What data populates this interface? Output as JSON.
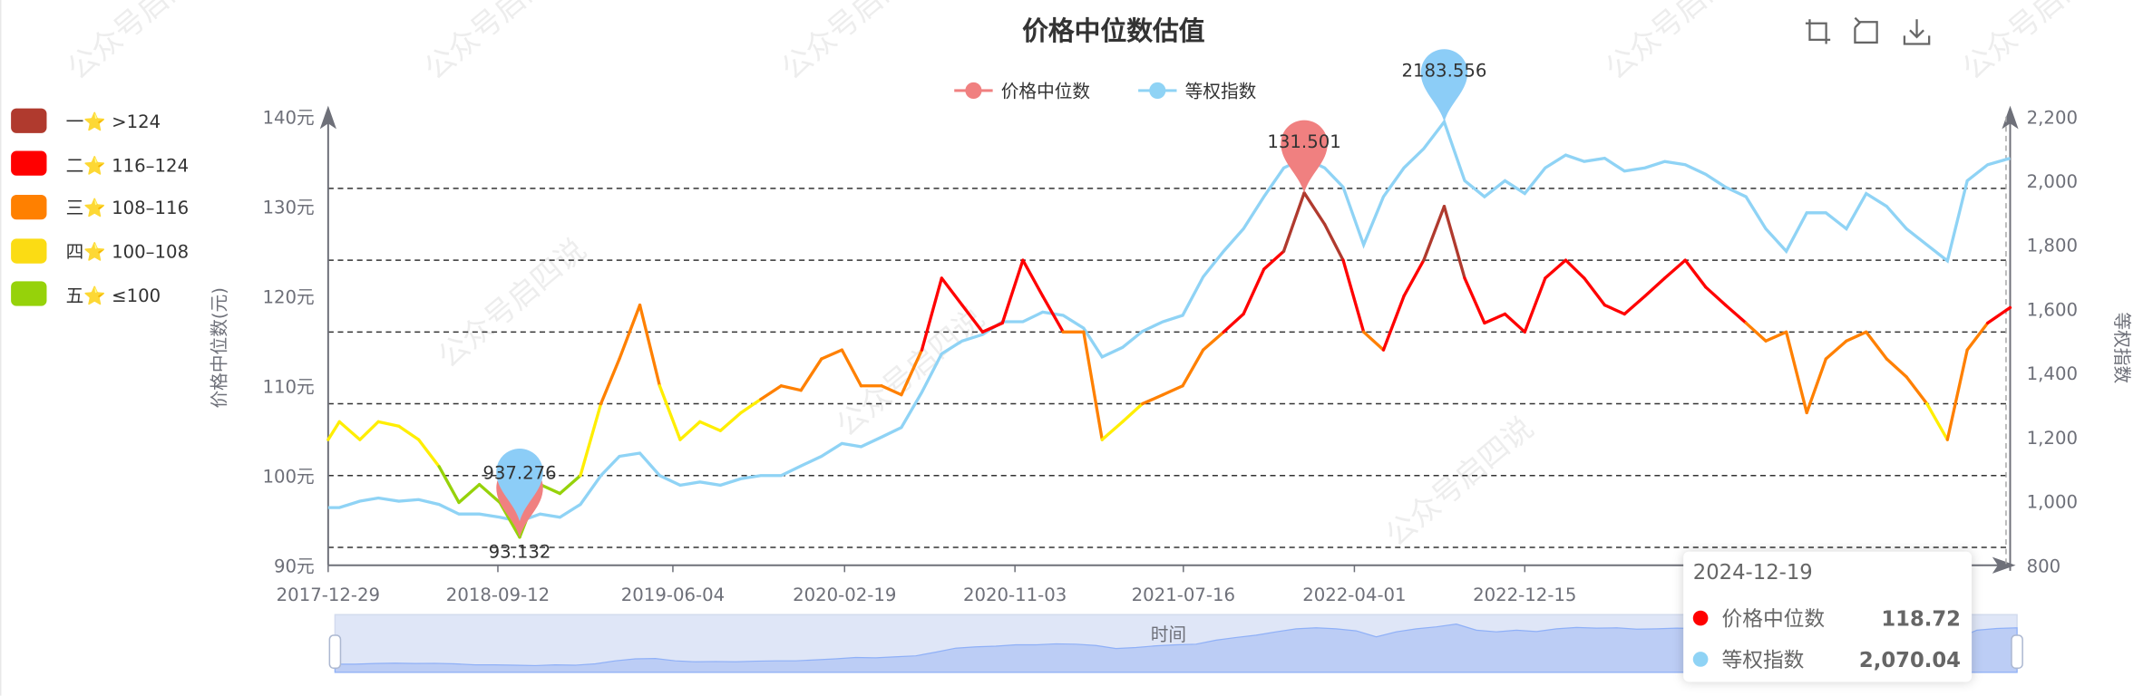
{
  "chart_data": {
    "type": "line",
    "title": "价格中位数估值",
    "xlabel": "时间",
    "ylabel_left": "价格中位数(元)",
    "ylabel_right": "等权指数",
    "y_left_range": [
      90,
      140
    ],
    "y_left_ticks": [
      "90元",
      "100元",
      "110元",
      "120元",
      "130元",
      "140元"
    ],
    "y_right_range": [
      800,
      2200
    ],
    "y_right_ticks": [
      "800",
      "1,000",
      "1,200",
      "1,400",
      "1,600",
      "1,800",
      "2,000",
      "2,200"
    ],
    "x_range": [
      "2017-12-29",
      "2024-12-19"
    ],
    "x_tick_labels": [
      "2017-12-29",
      "2018-09-12",
      "2019-06-04",
      "2020-02-19",
      "2020-11-03",
      "2021-07-16",
      "2022-04-01",
      "2022-12-15"
    ],
    "reference_lines": [
      92,
      100,
      108,
      116,
      124,
      132
    ],
    "grid": false,
    "legend_position": "top",
    "x": [
      "2017-12-29",
      "2018-01",
      "2018-02",
      "2018-03",
      "2018-04",
      "2018-05",
      "2018-06",
      "2018-07",
      "2018-08",
      "2018-09",
      "2018-10",
      "2018-11",
      "2018-12",
      "2019-01",
      "2019-02",
      "2019-03",
      "2019-04",
      "2019-05",
      "2019-06",
      "2019-07",
      "2019-08",
      "2019-09",
      "2019-10",
      "2019-11",
      "2019-12",
      "2020-01",
      "2020-02",
      "2020-03",
      "2020-04",
      "2020-05",
      "2020-06",
      "2020-07",
      "2020-08",
      "2020-09",
      "2020-10",
      "2020-11",
      "2020-12",
      "2021-01",
      "2021-02",
      "2021-03",
      "2021-04",
      "2021-05",
      "2021-06",
      "2021-07",
      "2021-08",
      "2021-09",
      "2021-10",
      "2021-11",
      "2021-12",
      "2022-01",
      "2022-02",
      "2022-03",
      "2022-04",
      "2022-05",
      "2022-06",
      "2022-07",
      "2022-08",
      "2022-09",
      "2022-10",
      "2022-11",
      "2022-12",
      "2023-01",
      "2023-02",
      "2023-03",
      "2023-04",
      "2023-05",
      "2023-06",
      "2023-07",
      "2023-08",
      "2023-09",
      "2023-10",
      "2023-11",
      "2023-12",
      "2024-01",
      "2024-02",
      "2024-03",
      "2024-04",
      "2024-05",
      "2024-06",
      "2024-07",
      "2024-08",
      "2024-09",
      "2024-10",
      "2024-11",
      "2024-12-19"
    ],
    "series": [
      {
        "name": "价格中位数",
        "axis": "left",
        "color": "#f08080",
        "values": [
          104,
          106,
          104,
          106,
          105.5,
          104,
          101,
          97,
          99,
          97,
          93.132,
          99,
          98,
          100,
          108,
          113,
          119,
          110,
          104,
          106,
          105,
          107,
          108.5,
          110,
          109.5,
          113,
          114,
          110,
          110,
          109,
          114,
          122,
          119,
          116,
          117,
          124,
          120,
          116,
          116,
          104,
          106,
          108,
          109,
          110,
          114,
          116,
          118,
          123,
          125,
          131.501,
          128,
          124,
          116,
          114,
          120,
          124,
          130,
          122,
          117,
          118,
          116,
          122,
          124,
          122,
          119,
          118,
          120,
          122,
          124,
          121,
          119,
          117,
          115,
          116,
          107,
          113,
          115,
          116,
          113,
          111,
          108,
          104,
          114,
          117,
          118.72
        ]
      },
      {
        "name": "等权指数",
        "axis": "right",
        "color": "#8fd3f5",
        "values": [
          980,
          980,
          1000,
          1010,
          1000,
          1005,
          990,
          960,
          960,
          950,
          937.276,
          960,
          950,
          990,
          1080,
          1140,
          1150,
          1080,
          1050,
          1060,
          1050,
          1070,
          1080,
          1080,
          1110,
          1140,
          1180,
          1170,
          1200,
          1230,
          1340,
          1460,
          1500,
          1520,
          1560,
          1560,
          1590,
          1580,
          1540,
          1450,
          1480,
          1530,
          1560,
          1580,
          1700,
          1780,
          1850,
          1950,
          2040,
          2070,
          2040,
          1980,
          1800,
          1950,
          2040,
          2100,
          2183.556,
          2000,
          1950,
          2000,
          1960,
          2040,
          2080,
          2060,
          2070,
          2030,
          2040,
          2060,
          2050,
          2020,
          1980,
          1950,
          1850,
          1780,
          1900,
          1900,
          1850,
          1960,
          1920,
          1850,
          1800,
          1750,
          2000,
          2050,
          2070.04
        ]
      }
    ],
    "mark_points": [
      {
        "series": "价格中位数",
        "type": "max",
        "label": "131.501",
        "color": "#f08080"
      },
      {
        "series": "价格中位数",
        "type": "min",
        "label": "93.132",
        "color": "#f08080"
      },
      {
        "series": "等权指数",
        "type": "max",
        "label": "2183.556",
        "color": "#8ccdf7"
      },
      {
        "series": "等权指数",
        "type": "min",
        "label": "937.276",
        "color": "#8ccdf7"
      }
    ],
    "visual_map": [
      {
        "label": "一⭐ >124",
        "rank": "一",
        "range": ">124",
        "color": "#b03a2e"
      },
      {
        "label": "二⭐ 116–124",
        "rank": "二",
        "range": "116–124",
        "color": "#ff0000"
      },
      {
        "label": "三⭐ 108–116",
        "rank": "三",
        "range": "108–116",
        "color": "#ff8000"
      },
      {
        "label": "四⭐ 100–108",
        "rank": "四",
        "range": "100–108",
        "color": "#fbdc14"
      },
      {
        "label": "五⭐ ≤100",
        "rank": "五",
        "range": "≤100",
        "color": "#96d20a"
      }
    ]
  },
  "legend": [
    {
      "label": "价格中位数",
      "color": "#f08080"
    },
    {
      "label": "等权指数",
      "color": "#8fd3f5"
    }
  ],
  "toolbox": [
    "crop-zoom-icon",
    "restore-icon",
    "download-icon"
  ],
  "tooltip": {
    "date": "2024-12-19",
    "rows": [
      {
        "label": "价格中位数",
        "value": "118.72",
        "color": "#ff0000"
      },
      {
        "label": "等权指数",
        "value": "2,070.04",
        "color": "#8fd3f5"
      }
    ]
  },
  "watermark": "公众号启四说"
}
